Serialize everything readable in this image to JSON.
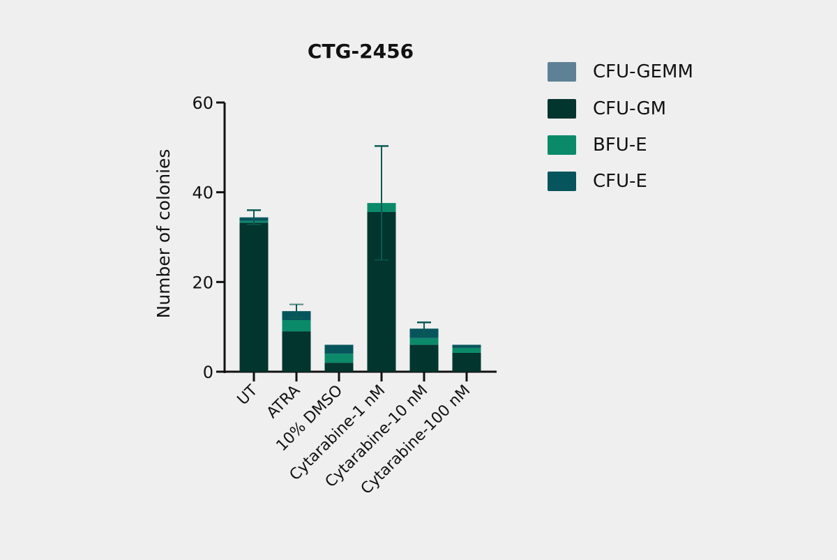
{
  "chart_data": {
    "type": "bar",
    "stacked": true,
    "title": "CTG-2456",
    "xlabel": "",
    "ylabel": "Number of colonies",
    "ylim": [
      0,
      60
    ],
    "yticks": [
      0,
      20,
      40,
      60
    ],
    "categories": [
      "UT",
      "ATRA",
      "10% DMSO",
      "Cytarabine-1 nM",
      "Cytarabine-10 nM",
      "Cytarabine-100 nM"
    ],
    "series": [
      {
        "name": "CFU-GM",
        "color": "#02352e",
        "values": [
          33.2,
          9.0,
          2.0,
          35.6,
          6.0,
          4.2
        ]
      },
      {
        "name": "BFU-E",
        "color": "#0b8a6a",
        "values": [
          0.4,
          2.5,
          2.0,
          2.0,
          1.5,
          1.1
        ]
      },
      {
        "name": "CFU-E",
        "color": "#07555c",
        "values": [
          0.8,
          2.0,
          2.0,
          0.0,
          2.1,
          0.7
        ]
      },
      {
        "name": "CFU-GEMM",
        "color": "#5f8196",
        "values": [
          0,
          0,
          0,
          0,
          0,
          0
        ]
      }
    ],
    "error_bars_top": [
      36.0,
      12.0,
      null,
      50.3,
      11.0,
      null
    ],
    "legend_position": "right",
    "grid": false
  },
  "legend": [
    {
      "label": "CFU-GEMM",
      "color": "#5f8196"
    },
    {
      "label": "CFU-GM",
      "color": "#02352e"
    },
    {
      "label": "BFU-E",
      "color": "#0b8a6a"
    },
    {
      "label": "CFU-E",
      "color": "#07555c"
    }
  ]
}
